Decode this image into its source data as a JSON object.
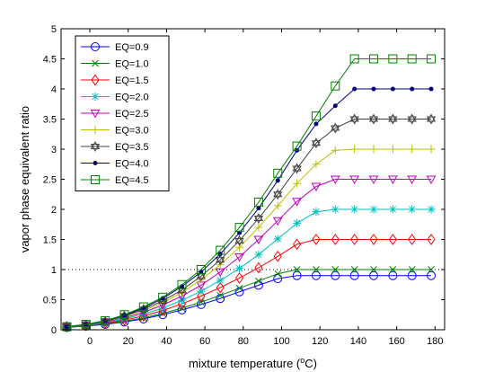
{
  "chart_data": {
    "type": "line",
    "title": "",
    "xlabel": {
      "prefix": "mixture temperature (",
      "superscript": "o",
      "suffix": "C)"
    },
    "ylabel": "vapor phase equivalent ratio",
    "xlim": [
      -15,
      185
    ],
    "ylim": [
      0,
      5
    ],
    "xticks": [
      0,
      20,
      40,
      60,
      80,
      100,
      120,
      140,
      160,
      180
    ],
    "yticks": [
      0,
      0.5,
      1,
      1.5,
      2,
      2.5,
      3,
      3.5,
      4,
      4.5,
      5
    ],
    "xtick_labels": [
      "0",
      "20",
      "40",
      "60",
      "80",
      "100",
      "120",
      "140",
      "160",
      "180"
    ],
    "ytick_labels": [
      "0",
      "0.5",
      "1",
      "1.5",
      "2",
      "2.5",
      "3",
      "3.5",
      "4",
      "4.5",
      "5"
    ],
    "grid": false,
    "legend_position": "top-left",
    "reference_line": {
      "y": 1,
      "style": "dotted",
      "color": "#000000"
    },
    "x": [
      -12,
      -2,
      8,
      18,
      28,
      38,
      48,
      58,
      68,
      78,
      88,
      98,
      108,
      118,
      128,
      138,
      148,
      158,
      168,
      178
    ],
    "series": [
      {
        "name": "EQ=0.9",
        "color": "#0000ff",
        "marker": "circle",
        "values": [
          0.04,
          0.06,
          0.09,
          0.13,
          0.18,
          0.25,
          0.33,
          0.42,
          0.52,
          0.63,
          0.74,
          0.85,
          0.9,
          0.9,
          0.9,
          0.9,
          0.9,
          0.9,
          0.9,
          0.9
        ]
      },
      {
        "name": "EQ=1.0",
        "color": "#008000",
        "marker": "x",
        "values": [
          0.04,
          0.06,
          0.1,
          0.14,
          0.2,
          0.27,
          0.36,
          0.46,
          0.57,
          0.69,
          0.81,
          0.93,
          1.0,
          1.0,
          1.0,
          1.0,
          1.0,
          1.0,
          1.0,
          1.0
        ]
      },
      {
        "name": "EQ=1.5",
        "color": "#ff0000",
        "marker": "diamond",
        "values": [
          0.05,
          0.07,
          0.11,
          0.16,
          0.23,
          0.32,
          0.43,
          0.56,
          0.7,
          0.86,
          1.03,
          1.22,
          1.42,
          1.5,
          1.5,
          1.5,
          1.5,
          1.5,
          1.5,
          1.5
        ]
      },
      {
        "name": "EQ=2.0",
        "color": "#00bfbf",
        "marker": "asterisk",
        "values": [
          0.05,
          0.07,
          0.12,
          0.18,
          0.26,
          0.36,
          0.49,
          0.64,
          0.82,
          1.02,
          1.25,
          1.51,
          1.77,
          1.96,
          2.0,
          2.0,
          2.0,
          2.0,
          2.0,
          2.0
        ]
      },
      {
        "name": "EQ=2.5",
        "color": "#bf00bf",
        "marker": "triangle-down",
        "values": [
          0.05,
          0.08,
          0.13,
          0.2,
          0.29,
          0.41,
          0.56,
          0.74,
          0.96,
          1.21,
          1.5,
          1.81,
          2.13,
          2.38,
          2.5,
          2.5,
          2.5,
          2.5,
          2.5,
          2.5
        ]
      },
      {
        "name": "EQ=3.0",
        "color": "#bfbf00",
        "marker": "plus",
        "values": [
          0.05,
          0.08,
          0.14,
          0.22,
          0.32,
          0.45,
          0.62,
          0.83,
          1.08,
          1.37,
          1.7,
          2.06,
          2.43,
          2.75,
          2.98,
          3.0,
          3.0,
          3.0,
          3.0,
          3.0
        ]
      },
      {
        "name": "EQ=3.5",
        "color": "#404040",
        "marker": "hexagram",
        "values": [
          0.05,
          0.08,
          0.14,
          0.23,
          0.34,
          0.48,
          0.66,
          0.89,
          1.16,
          1.48,
          1.85,
          2.25,
          2.68,
          3.1,
          3.35,
          3.5,
          3.5,
          3.5,
          3.5,
          3.5
        ]
      },
      {
        "name": "EQ=4.0",
        "color": "#000080",
        "marker": "point",
        "values": [
          0.05,
          0.09,
          0.15,
          0.24,
          0.36,
          0.52,
          0.72,
          0.96,
          1.26,
          1.61,
          2.02,
          2.48,
          2.98,
          3.42,
          3.72,
          4.0,
          4.0,
          4.0,
          4.0,
          4.0
        ]
      },
      {
        "name": "EQ=4.5",
        "color": "#008000",
        "marker": "square",
        "values": [
          0.05,
          0.09,
          0.15,
          0.25,
          0.38,
          0.54,
          0.75,
          1.0,
          1.32,
          1.7,
          2.12,
          2.6,
          3.05,
          3.55,
          4.05,
          4.5,
          4.5,
          4.5,
          4.5,
          4.5
        ]
      }
    ]
  }
}
